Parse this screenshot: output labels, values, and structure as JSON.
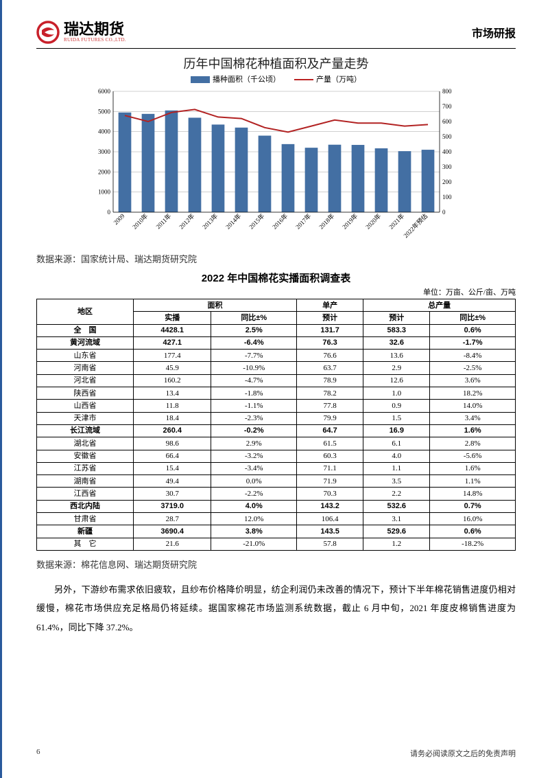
{
  "header": {
    "logo_cn": "瑞达期货",
    "logo_en": "RUIDA FUTURES CO.,LTD.",
    "logo_swirl_color": "#c8202a",
    "title_right": "市场研报"
  },
  "chart": {
    "title": "历年中国棉花种植面积及产量走势",
    "legend_bar": "播种面积（千公顷）",
    "legend_line": "产量（万吨）",
    "categories": [
      "2009",
      "2010年",
      "2011年",
      "2012年",
      "2013年",
      "2014年",
      "2015年",
      "2016年",
      "2017年",
      "2018年",
      "2019年",
      "2020年",
      "2021年",
      "2022年预估"
    ],
    "bar_values": [
      4950,
      4880,
      5050,
      4690,
      4350,
      4200,
      3800,
      3380,
      3200,
      3350,
      3340,
      3170,
      3030,
      3100
    ],
    "line_values": [
      640,
      600,
      660,
      680,
      630,
      620,
      560,
      530,
      570,
      610,
      590,
      590,
      570,
      580
    ],
    "yL_max": 6000,
    "yL_step": 1000,
    "yR_max": 800,
    "yR_step": 100,
    "bar_color": "#436fa3",
    "line_color": "#b22222",
    "grid_color": "#888",
    "bg": "#ffffff",
    "axis_fontsize": 9,
    "title_fontsize": 18,
    "legend_fontsize": 11
  },
  "source1": "数据来源：国家统计局、瑞达期货研究院",
  "table": {
    "title": "2022 年中国棉花实播面积调查表",
    "unit": "单位：万亩、公斤/亩、万吨",
    "head": {
      "region": "地区",
      "area_group": "面积",
      "yield_group": "单产",
      "total_group": "总产量",
      "sown": "实播",
      "yoy": "同比±%",
      "est": "预计"
    },
    "rows": [
      {
        "region": "全　国",
        "sown": "4428.1",
        "area_yoy": "2.5%",
        "yield": "131.7",
        "total": "583.3",
        "total_yoy": "0.6%",
        "bold": true
      },
      {
        "region": "黄河流域",
        "sown": "427.1",
        "area_yoy": "-6.4%",
        "yield": "76.3",
        "total": "32.6",
        "total_yoy": "-1.7%",
        "bold": true
      },
      {
        "region": "山东省",
        "sown": "177.4",
        "area_yoy": "-7.7%",
        "yield": "76.6",
        "total": "13.6",
        "total_yoy": "-8.4%"
      },
      {
        "region": "河南省",
        "sown": "45.9",
        "area_yoy": "-10.9%",
        "yield": "63.7",
        "total": "2.9",
        "total_yoy": "-2.5%"
      },
      {
        "region": "河北省",
        "sown": "160.2",
        "area_yoy": "-4.7%",
        "yield": "78.9",
        "total": "12.6",
        "total_yoy": "3.6%"
      },
      {
        "region": "陕西省",
        "sown": "13.4",
        "area_yoy": "-1.8%",
        "yield": "78.2",
        "total": "1.0",
        "total_yoy": "18.2%"
      },
      {
        "region": "山西省",
        "sown": "11.8",
        "area_yoy": "-1.1%",
        "yield": "77.8",
        "total": "0.9",
        "total_yoy": "14.0%"
      },
      {
        "region": "天津市",
        "sown": "18.4",
        "area_yoy": "-2.3%",
        "yield": "79.9",
        "total": "1.5",
        "total_yoy": "3.4%"
      },
      {
        "region": "长江流域",
        "sown": "260.4",
        "area_yoy": "-0.2%",
        "yield": "64.7",
        "total": "16.9",
        "total_yoy": "1.6%",
        "bold": true
      },
      {
        "region": "湖北省",
        "sown": "98.6",
        "area_yoy": "2.9%",
        "yield": "61.5",
        "total": "6.1",
        "total_yoy": "2.8%"
      },
      {
        "region": "安徽省",
        "sown": "66.4",
        "area_yoy": "-3.2%",
        "yield": "60.3",
        "total": "4.0",
        "total_yoy": "-5.6%"
      },
      {
        "region": "江苏省",
        "sown": "15.4",
        "area_yoy": "-3.4%",
        "yield": "71.1",
        "total": "1.1",
        "total_yoy": "1.6%"
      },
      {
        "region": "湖南省",
        "sown": "49.4",
        "area_yoy": "0.0%",
        "yield": "71.9",
        "total": "3.5",
        "total_yoy": "1.1%"
      },
      {
        "region": "江西省",
        "sown": "30.7",
        "area_yoy": "-2.2%",
        "yield": "70.3",
        "total": "2.2",
        "total_yoy": "14.8%"
      },
      {
        "region": "西北内陆",
        "sown": "3719.0",
        "area_yoy": "4.0%",
        "yield": "143.2",
        "total": "532.6",
        "total_yoy": "0.7%",
        "bold": true
      },
      {
        "region": "甘肃省",
        "sown": "28.7",
        "area_yoy": "12.0%",
        "yield": "106.4",
        "total": "3.1",
        "total_yoy": "16.0%"
      },
      {
        "region": "新疆",
        "sown": "3690.4",
        "area_yoy": "3.8%",
        "yield": "143.5",
        "total": "529.6",
        "total_yoy": "0.6%",
        "bold": true
      },
      {
        "region": "其　它",
        "sown": "21.6",
        "area_yoy": "-21.0%",
        "yield": "57.8",
        "total": "1.2",
        "total_yoy": "-18.2%"
      }
    ]
  },
  "source2": "数据来源：棉花信息网、瑞达期货研究院",
  "body_text": "另外，下游纱布需求依旧疲软，且纱布价格降价明显，纺企利润仍未改善的情况下，预计下半年棉花销售进度仍相对缓慢，棉花市场供应充足格局仍将延续。据国家棉花市场监测系统数据，截止 6 月中旬，2021 年度皮棉销售进度为 61.4%，同比下降 37.2%。",
  "footer": {
    "page": "6",
    "disclaimer": "请务必阅读原文之后的免责声明"
  }
}
